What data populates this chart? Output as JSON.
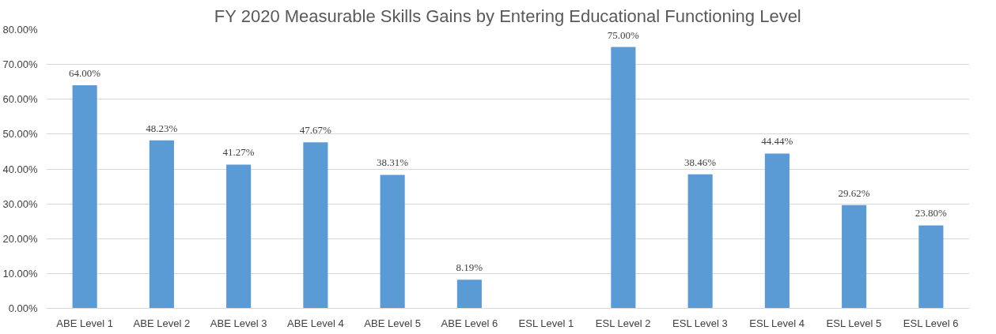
{
  "chart_data": {
    "type": "bar",
    "title": "FY 2020 Measurable Skills Gains by Entering Educational Functioning Level",
    "categories": [
      "ABE Level 1",
      "ABE Level 2",
      "ABE Level 3",
      "ABE Level 4",
      "ABE Level 5",
      "ABE Level 6",
      "ESL Level 1",
      "ESL Level 2",
      "ESL Level 3",
      "ESL Level 4",
      "ESL Level 5",
      "ESL Level 6"
    ],
    "values": [
      64.0,
      48.23,
      41.27,
      47.67,
      38.31,
      8.19,
      null,
      75.0,
      38.46,
      44.44,
      29.62,
      23.8
    ],
    "value_labels": [
      "64.00%",
      "48.23%",
      "41.27%",
      "47.67%",
      "38.31%",
      "8.19%",
      null,
      "75.00%",
      "38.46%",
      "44.44%",
      "29.62%",
      "23.80%"
    ],
    "color": "#5b9bd5",
    "ylim": [
      0,
      80
    ],
    "yticks": [
      {
        "value": 0,
        "label": "0.00%"
      },
      {
        "value": 10,
        "label": "10.00%"
      },
      {
        "value": 20,
        "label": "20.00%"
      },
      {
        "value": 30,
        "label": "30.00%"
      },
      {
        "value": 40,
        "label": "40.00%"
      },
      {
        "value": 50,
        "label": "50.00%"
      },
      {
        "value": 60,
        "label": "60.00%"
      },
      {
        "value": 70,
        "label": "70.00%"
      },
      {
        "value": 80,
        "label": "80.00%"
      }
    ],
    "grid": "y"
  }
}
